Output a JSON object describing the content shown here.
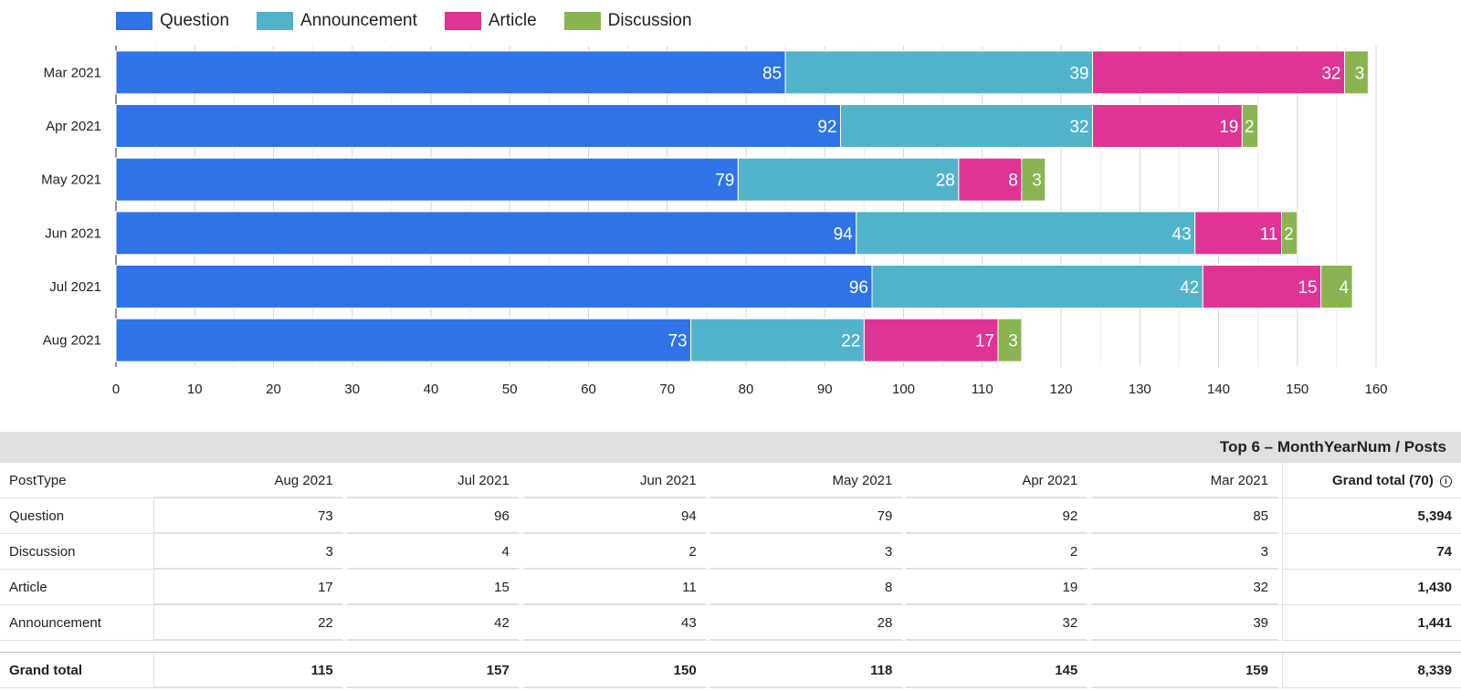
{
  "chart_data": {
    "type": "bar",
    "orientation": "horizontal",
    "stacked": true,
    "categories": [
      "Mar 2021",
      "Apr 2021",
      "May 2021",
      "Jun 2021",
      "Jul 2021",
      "Aug 2021"
    ],
    "series": [
      {
        "name": "Question",
        "color": "#2f73e6",
        "values": [
          85,
          92,
          79,
          94,
          96,
          73
        ]
      },
      {
        "name": "Announcement",
        "color": "#51b3c9",
        "values": [
          39,
          32,
          28,
          43,
          42,
          22
        ]
      },
      {
        "name": "Article",
        "color": "#df3495",
        "values": [
          32,
          19,
          8,
          11,
          15,
          17
        ]
      },
      {
        "name": "Discussion",
        "color": "#8ab351",
        "values": [
          3,
          2,
          3,
          2,
          4,
          3
        ]
      }
    ],
    "xlim": [
      0,
      160
    ],
    "xticks": [
      0,
      10,
      20,
      30,
      40,
      50,
      60,
      70,
      80,
      90,
      100,
      110,
      120,
      130,
      140,
      150,
      160
    ],
    "grid": true,
    "legend_position": "top-left",
    "data_labels": true
  },
  "table": {
    "title": "Top 6 – MonthYearNum / Posts",
    "corner_header": "PostType",
    "columns": [
      "Aug 2021",
      "Jul 2021",
      "Jun 2021",
      "May 2021",
      "Apr 2021",
      "Mar 2021"
    ],
    "grand_total_header": "Grand total (70)",
    "info_icon": "i",
    "rows": [
      {
        "label": "Question",
        "values": [
          "73",
          "96",
          "94",
          "79",
          "92",
          "85"
        ],
        "total": "5,394"
      },
      {
        "label": "Discussion",
        "values": [
          "3",
          "4",
          "2",
          "3",
          "2",
          "3"
        ],
        "total": "74"
      },
      {
        "label": "Article",
        "values": [
          "17",
          "15",
          "11",
          "8",
          "19",
          "32"
        ],
        "total": "1,430"
      },
      {
        "label": "Announcement",
        "values": [
          "22",
          "42",
          "43",
          "28",
          "32",
          "39"
        ],
        "total": "1,441"
      }
    ],
    "grand_total_row": {
      "label": "Grand total",
      "values": [
        "115",
        "157",
        "150",
        "118",
        "145",
        "159"
      ],
      "total": "8,339"
    }
  }
}
